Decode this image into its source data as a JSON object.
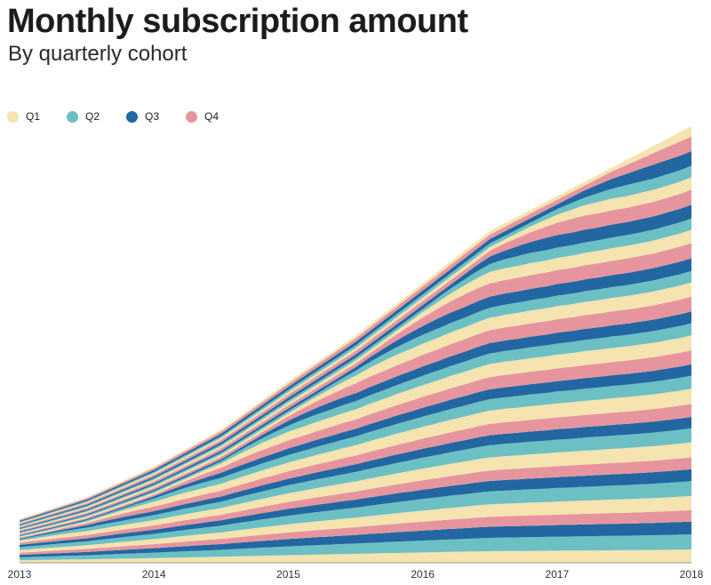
{
  "title": "Monthly subscription amount",
  "subtitle": "By quarterly cohort",
  "legend": [
    {
      "label": "Q1",
      "color": "#f5e3b0"
    },
    {
      "label": "Q2",
      "color": "#6cc0c4"
    },
    {
      "label": "Q3",
      "color": "#2267a1"
    },
    {
      "label": "Q4",
      "color": "#e6959f"
    }
  ],
  "chart_data": {
    "type": "area",
    "stacked": true,
    "title": "Monthly subscription amount",
    "subtitle": "By quarterly cohort",
    "xlabel": "",
    "ylabel": "",
    "x_ticks": [
      "2013",
      "2014",
      "2015",
      "2016",
      "2017",
      "2018"
    ],
    "x_range": [
      2013,
      2018
    ],
    "y_axis_shown": false,
    "grid": false,
    "legend_position": "top-left",
    "series_colors_cycle": [
      "Q1",
      "Q2",
      "Q3",
      "Q4"
    ],
    "total_profile": [
      {
        "x": 2013.0,
        "y": 10.0
      },
      {
        "x": 2013.5,
        "y": 15.0
      },
      {
        "x": 2014.0,
        "y": 22.0
      },
      {
        "x": 2014.5,
        "y": 30.5
      },
      {
        "x": 2015.0,
        "y": 41.5
      },
      {
        "x": 2015.5,
        "y": 52.0
      },
      {
        "x": 2016.0,
        "y": 64.0
      },
      {
        "x": 2016.5,
        "y": 76.0
      },
      {
        "x": 2017.0,
        "y": 84.0
      },
      {
        "x": 2017.5,
        "y": 92.0
      },
      {
        "x": 2018.0,
        "y": 100.0
      }
    ],
    "cohort_count": 33,
    "note_units": "relative; no y-axis values printed"
  }
}
